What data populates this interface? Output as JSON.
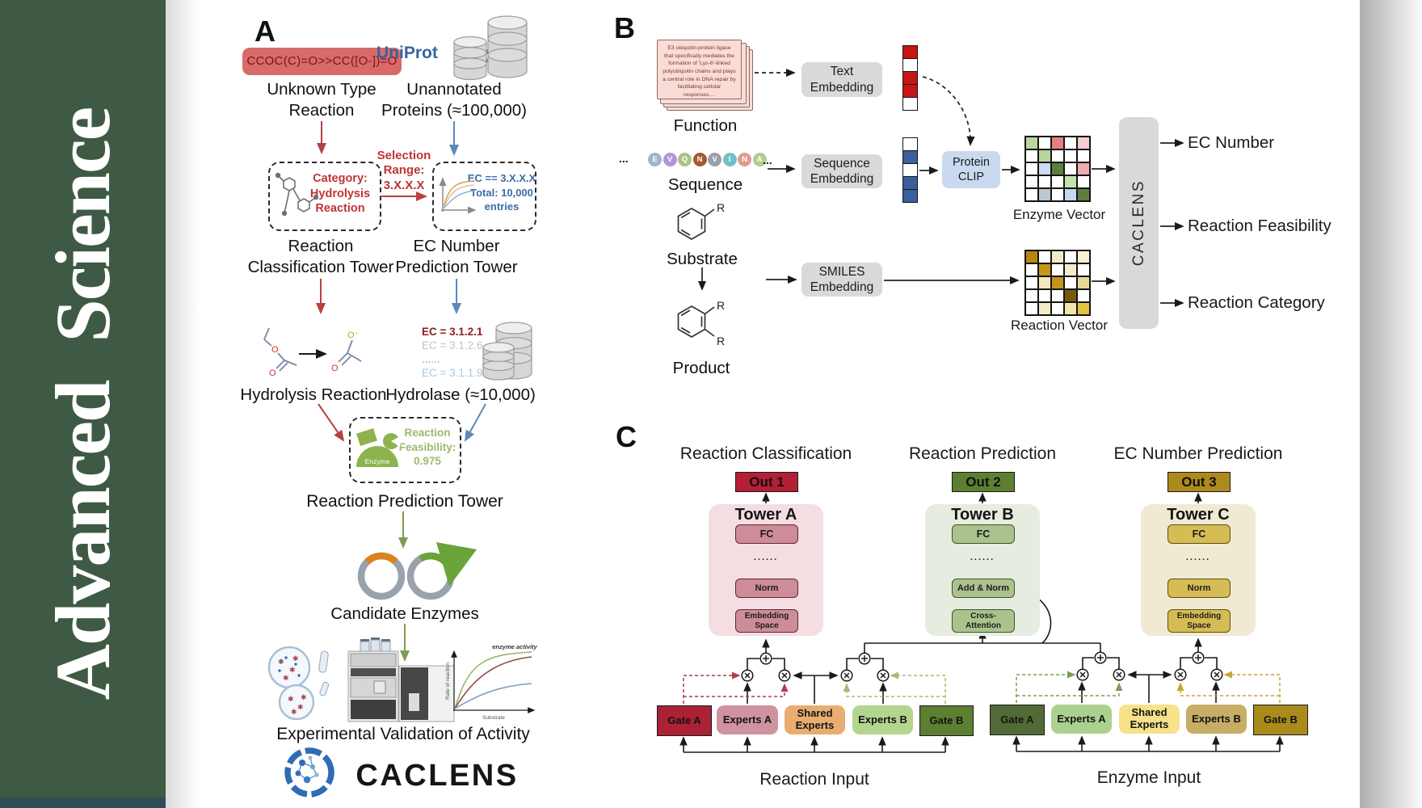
{
  "sidebar": {
    "journal": "Advanced Science"
  },
  "panelA": {
    "label": "A",
    "smiles": "CCOC(C)=O>>CC([O-])=O",
    "unknown_reaction": "Unknown Type\nReaction",
    "uniprot": "UniProt",
    "unannotated": "Unannotated\nProteins (≈100,000)",
    "selection_range": "Selection\nRange:\n3.X.X.X",
    "category_box": "Category:\nHydrolysis\nReaction",
    "ec_box": "EC == 3.X.X.X\nTotal: 10,000\nentries",
    "classification_tower": "Reaction\nClassification Tower",
    "ec_tower": "EC Number\nPrediction Tower",
    "ec_list": [
      {
        "text": "EC = 3.1.2.1",
        "color": "#8b2020",
        "bold": true
      },
      {
        "text": "EC = 3.1.2.6",
        "color": "#c4c4c4",
        "bold": false
      },
      {
        "text": "......",
        "color": "#9a9a9a",
        "bold": false
      },
      {
        "text": "EC = 3.1.1.9",
        "color": "#a9c6e2",
        "bold": false
      }
    ],
    "hydrolysis": "Hydrolysis Reaction",
    "hydrolase": "Hydrolase (≈10,000)",
    "enzyme_label": "Enzyme",
    "feasibility": "Reaction\nFeasibility:\n0.975",
    "prediction_tower": "Reaction Prediction Tower",
    "candidate_enzymes": "Candidate Enzymes",
    "activity_plot": {
      "title": "enzyme activity",
      "ylabel": "Rate of reaction",
      "xlabel": "Substrate"
    },
    "validation": "Experimental Validation of Activity",
    "wordmark": "CACLENS",
    "atom_o": "O",
    "atom_o_minus": "O⁻"
  },
  "panelB": {
    "label": "B",
    "function_card": "E3 ubiquitin-protein ligase that specifically mediates the formation of 'Lys-6'-linked polyubiquitin chains and plays a central role in DNA repair by facilitating cellular responses....",
    "function": "Function",
    "ellipsis": "...",
    "sequence_letters": [
      {
        "ch": "E",
        "color": "#9db3cf"
      },
      {
        "ch": "V",
        "color": "#b393dd"
      },
      {
        "ch": "Q",
        "color": "#a9c383"
      },
      {
        "ch": "N",
        "color": "#a35b2a"
      },
      {
        "ch": "V",
        "color": "#9aa0a6"
      },
      {
        "ch": "I",
        "color": "#72bfc9"
      },
      {
        "ch": "N",
        "color": "#e49a8a"
      },
      {
        "ch": "A",
        "color": "#b8cb8f"
      }
    ],
    "sequence": "Sequence",
    "substrate": "Substrate",
    "product": "Product",
    "r_label": "R",
    "text_embedding": "Text\nEmbedding",
    "sequence_embedding": "Sequence\nEmbedding",
    "smiles_embedding": "SMILES\nEmbedding",
    "protein_clip": "Protein\nCLIP",
    "text_vector": [
      "#c81414",
      "#ffffff",
      "#c81414",
      "#c81414",
      "#ffffff"
    ],
    "seq_vector": [
      "#ffffff",
      "#3a5f9e",
      "#ffffff",
      "#3a5f9e",
      "#3a5f9e"
    ],
    "enzyme_vector_label": "Enzyme Vector",
    "reaction_vector_label": "Reaction Vector",
    "enzyme_vector_grid": [
      [
        "#b7d79c",
        "#ffffff",
        "#e77f7f",
        "#ffffff",
        "#f6ccd1"
      ],
      [
        "#ffffff",
        "#b7d79c",
        "#ffffff",
        "#ffffff",
        "#ffffff"
      ],
      [
        "#ffffff",
        "#ccdcf0",
        "#5d7f3e",
        "#ffffff",
        "#f2abb0"
      ],
      [
        "#ffffff",
        "#ffffff",
        "#ffffff",
        "#c6e2ad",
        "#ffffff"
      ],
      [
        "#ffffff",
        "#bac6d0",
        "#ffffff",
        "#c6d8f0",
        "#5d7f3e"
      ]
    ],
    "reaction_vector_grid": [
      [
        "#b8860f",
        "#ffffff",
        "#f4ecc8",
        "#ffffff",
        "#faf2d2"
      ],
      [
        "#ffffff",
        "#c4961c",
        "#ffffff",
        "#f4ecc8",
        "#ffffff"
      ],
      [
        "#ffffff",
        "#f4e8bc",
        "#c4961c",
        "#ffffff",
        "#e9d795"
      ],
      [
        "#ffffff",
        "#ffffff",
        "#ffffff",
        "#77590e",
        "#ffffff"
      ],
      [
        "#ffffff",
        "#f4ecc8",
        "#ffffff",
        "#f1e5ae",
        "#e3c23e"
      ]
    ],
    "caclens": "CACLENS",
    "outputs": [
      "EC Number",
      "Reaction Feasibility",
      "Reaction Category"
    ]
  },
  "panelC": {
    "label": "C",
    "towers": [
      {
        "title": "Reaction Classification",
        "out": "Out 1",
        "name": "Tower A",
        "layers": [
          "FC",
          "......",
          "Norm",
          "Embedding\nSpace"
        ],
        "container_bg": "#f4dee2",
        "box_bg": "#cd8c97",
        "box_border": "#5f2833",
        "out_bg": "#b41f35"
      },
      {
        "title": "Reaction Prediction",
        "out": "Out 2",
        "name": "Tower B",
        "layers": [
          "FC",
          "......",
          "Add & Norm",
          "Cross-\nAttention"
        ],
        "container_bg": "#e6ecdf",
        "box_bg": "#abc28d",
        "box_border": "#3f5426",
        "out_bg": "#5d8030"
      },
      {
        "title": "EC Number Prediction",
        "out": "Out 3",
        "name": "Tower C",
        "layers": [
          "FC",
          "......",
          "Norm",
          "Embedding\nSpace"
        ],
        "container_bg": "#f1ead3",
        "box_bg": "#d6bc55",
        "box_border": "#5f4d14",
        "out_bg": "#ad8a1d"
      }
    ],
    "moe_rows": [
      {
        "label": "Reaction Input",
        "boxes": [
          {
            "text": "Gate A",
            "bg": "#ab2135",
            "type": "gate"
          },
          {
            "text": "Experts A",
            "bg": "#cf93a0",
            "type": "experts"
          },
          {
            "text": "Shared\nExperts",
            "bg": "#e9ad72",
            "type": "experts"
          },
          {
            "text": "Experts B",
            "bg": "#b2d68f",
            "type": "experts"
          },
          {
            "text": "Gate B",
            "bg": "#5c7f31",
            "type": "gate"
          }
        ]
      },
      {
        "label": "Enzyme Input",
        "boxes": [
          {
            "text": "Gate A",
            "bg": "#506b35",
            "type": "gate"
          },
          {
            "text": "Experts A",
            "bg": "#abd18f",
            "type": "experts"
          },
          {
            "text": "Shared\nExperts",
            "bg": "#f7e189",
            "type": "experts"
          },
          {
            "text": "Experts B",
            "bg": "#c7ad66",
            "type": "experts"
          },
          {
            "text": "Gate B",
            "bg": "#ab8a1c",
            "type": "gate"
          }
        ]
      }
    ]
  }
}
